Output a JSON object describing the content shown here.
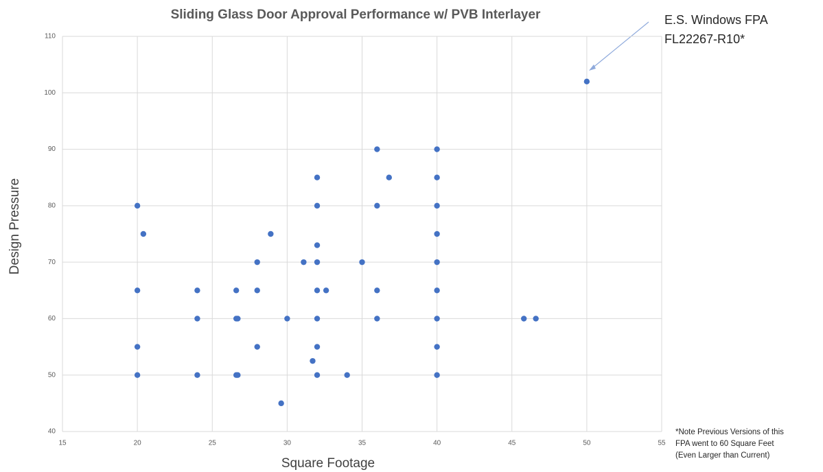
{
  "chart_data": {
    "type": "scatter",
    "title": "Sliding Glass Door Approval Performance w/ PVB Interlayer",
    "x_label": "Square Footage",
    "y_label": "Design Pressure",
    "annotation": [
      "E.S. Windows FPA",
      "FL22267-R10*"
    ],
    "note": [
      "*Note Previous Versions of this",
      "FPA went to 60 Square Feet",
      "(Even Larger than Current)"
    ],
    "color": "#4472c4",
    "grid": true,
    "xlim": [
      15,
      55
    ],
    "xticks": [
      15,
      20,
      25,
      30,
      35,
      40,
      45,
      50,
      55
    ],
    "ylim": [
      40,
      110
    ],
    "yticks": [
      40,
      50,
      60,
      70,
      80,
      90,
      100,
      110
    ],
    "x": [
      50,
      20,
      20.4,
      20,
      20,
      20,
      24,
      24,
      24,
      26.6,
      26.6,
      26.7,
      26.6,
      26.7,
      28,
      28,
      28,
      28.9,
      29.6,
      30,
      31.1,
      31.7,
      32,
      32,
      32,
      32,
      32,
      32.6,
      32,
      32,
      32,
      34,
      35,
      36,
      36,
      36.8,
      36,
      36,
      40,
      40,
      40,
      40,
      40,
      40,
      40,
      40,
      40,
      45.8,
      46.6
    ],
    "y": [
      102,
      80,
      75,
      65,
      55,
      50,
      65,
      60,
      50,
      65,
      60,
      60,
      50,
      50,
      70,
      65,
      55,
      75,
      45,
      60,
      70,
      52.5,
      85,
      80,
      73,
      70,
      65,
      65,
      60,
      55,
      50,
      50,
      70,
      90,
      80,
      85,
      65,
      60,
      90,
      85,
      80,
      75,
      70,
      65,
      60,
      55,
      50,
      60,
      60
    ]
  }
}
